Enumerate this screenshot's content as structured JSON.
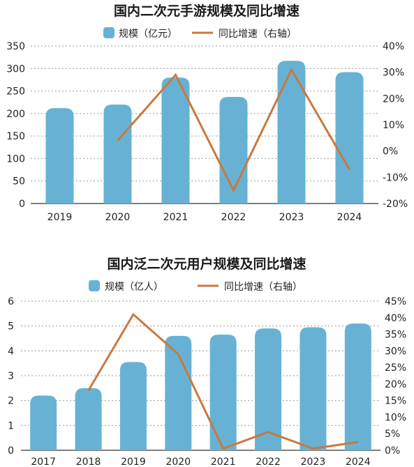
{
  "colors": {
    "bar": "#67b2d4",
    "line": "#c8793f"
  },
  "chart_data": [
    {
      "type": "bar",
      "title": "国内二次元手游规模及同比增速",
      "legend": {
        "bar_label": "规模（亿元）",
        "line_label": "同比增速（右轴）",
        "placement": "top"
      },
      "categories": [
        "2019",
        "2020",
        "2021",
        "2022",
        "2023",
        "2024"
      ],
      "series": [
        {
          "name": "规模（亿元）",
          "axis": "left",
          "type": "bar",
          "values": [
            212,
            220,
            280,
            237,
            317,
            292
          ]
        },
        {
          "name": "同比增速（右轴）",
          "axis": "right",
          "type": "line",
          "values": [
            null,
            4,
            29,
            -15,
            31,
            -7
          ]
        }
      ],
      "y_left": {
        "min": 0,
        "max": 350,
        "ticks": [
          "0",
          "50",
          "100",
          "150",
          "200",
          "250",
          "300",
          "350"
        ]
      },
      "y_right": {
        "min": -20,
        "max": 40,
        "ticks": [
          "-20%",
          "-10%",
          "0%",
          "10%",
          "20%",
          "30%",
          "40%"
        ]
      },
      "grid": true
    },
    {
      "type": "bar",
      "title": "国内泛二次元用户规模及同比增速",
      "legend": {
        "bar_label": "规模（亿人）",
        "line_label": "同比增速（右轴）",
        "placement": "top"
      },
      "categories": [
        "2017",
        "2018",
        "2019",
        "2020",
        "2021",
        "2022",
        "2023",
        "2024"
      ],
      "series": [
        {
          "name": "规模（亿人）",
          "axis": "left",
          "type": "bar",
          "values": [
            2.2,
            2.5,
            3.55,
            4.6,
            4.65,
            4.9,
            4.95,
            5.1
          ]
        },
        {
          "name": "同比增速（右轴）",
          "axis": "right",
          "type": "line",
          "values": [
            null,
            18,
            41,
            29,
            0.5,
            5.5,
            0.5,
            2.5
          ]
        }
      ],
      "y_left": {
        "min": 0,
        "max": 6,
        "ticks": [
          "0",
          "1",
          "2",
          "3",
          "4",
          "5",
          "6"
        ]
      },
      "y_right": {
        "min": 0,
        "max": 45,
        "ticks": [
          "0%",
          "5%",
          "10%",
          "15%",
          "20%",
          "25%",
          "30%",
          "35%",
          "40%",
          "45%"
        ]
      },
      "grid": true
    }
  ]
}
